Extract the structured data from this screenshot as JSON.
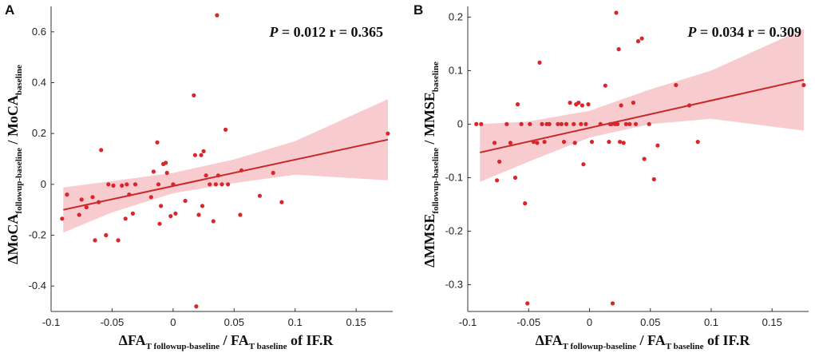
{
  "colors": {
    "points": "#d9262b",
    "fit_line": "#c62828",
    "ci_band": "#f4a9ad",
    "axis": "#333333"
  },
  "chart_data": [
    {
      "panel": "A",
      "type": "scatter",
      "stat_text": {
        "p_label": "P",
        "p_value": " = 0.012 r = 0.365"
      },
      "xlabel": {
        "main": "ΔFA",
        "sub1": "T followup-baseline",
        "mid": " / FA",
        "sub2": "T baseline",
        "tail": " of IF.R"
      },
      "ylabel": {
        "main": "ΔMoCA",
        "sub1": "followup-baseline",
        "mid": " / MoCA",
        "sub2": "baseline"
      },
      "xlim": [
        -0.1,
        0.18
      ],
      "ylim": [
        -0.5,
        0.7
      ],
      "xticks": [
        -0.1,
        -0.05,
        0,
        0.05,
        0.1,
        0.15
      ],
      "xtick_labels": [
        "-0.1",
        "-0.05",
        "0",
        "0.05",
        "0.1",
        "0.15"
      ],
      "yticks": [
        -0.4,
        -0.2,
        0,
        0.2,
        0.4,
        0.6
      ],
      "ytick_labels": [
        "-0.4",
        "-0.2",
        "0",
        "0.2",
        "0.4",
        "0.6"
      ],
      "fit": {
        "x": [
          -0.09,
          0.176
        ],
        "y": [
          -0.1,
          0.176
        ]
      },
      "ci_band": {
        "x": [
          -0.09,
          -0.05,
          0,
          0.05,
          0.1,
          0.176
        ],
        "upper": [
          -0.012,
          0.013,
          0.045,
          0.098,
          0.17,
          0.335
        ],
        "lower": [
          -0.19,
          -0.11,
          -0.035,
          0.005,
          0.038,
          0.016
        ]
      },
      "points": {
        "x": [
          -0.091,
          -0.087,
          -0.077,
          -0.075,
          -0.071,
          -0.066,
          -0.064,
          -0.061,
          -0.059,
          -0.055,
          -0.053,
          -0.049,
          -0.045,
          -0.042,
          -0.039,
          -0.038,
          -0.036,
          -0.033,
          -0.031,
          -0.018,
          -0.016,
          -0.013,
          -0.012,
          -0.011,
          -0.01,
          -0.008,
          -0.006,
          -0.005,
          -0.002,
          0.0,
          0.002,
          0.01,
          0.017,
          0.018,
          0.019,
          0.021,
          0.023,
          0.024,
          0.025,
          0.027,
          0.03,
          0.033,
          0.035,
          0.036,
          0.037,
          0.04,
          0.043,
          0.045,
          0.055,
          0.056,
          0.071,
          0.082,
          0.089,
          0.176
        ],
        "y": [
          -0.135,
          -0.04,
          -0.12,
          -0.06,
          -0.09,
          -0.05,
          -0.22,
          -0.07,
          0.135,
          -0.2,
          0.0,
          -0.005,
          -0.22,
          -0.005,
          -0.135,
          0.0,
          -0.04,
          -0.115,
          0.0,
          -0.05,
          0.05,
          0.165,
          0.0,
          -0.155,
          -0.085,
          0.08,
          0.085,
          0.045,
          -0.125,
          0.0,
          -0.115,
          -0.065,
          0.35,
          0.115,
          -0.48,
          -0.12,
          0.115,
          -0.085,
          0.13,
          0.035,
          0.0,
          -0.145,
          0.0,
          0.665,
          0.035,
          0.0,
          0.215,
          0.0,
          -0.12,
          0.055,
          -0.045,
          0.045,
          -0.07,
          0.2
        ]
      }
    },
    {
      "panel": "B",
      "type": "scatter",
      "stat_text": {
        "p_label": "P",
        "p_value": " = 0.034 r = 0.309"
      },
      "xlabel": {
        "main": "ΔFA",
        "sub1": "T followup-baseline",
        "mid": " / FA",
        "sub2": "T baseline",
        "tail": " of IF.R"
      },
      "ylabel": {
        "main": "ΔMMSE",
        "sub1": "followup-baseline",
        "mid": " / MMSE",
        "sub2": "baseline"
      },
      "xlim": [
        -0.1,
        0.18
      ],
      "ylim": [
        -0.35,
        0.22
      ],
      "xticks": [
        -0.1,
        -0.05,
        0,
        0.05,
        0.1,
        0.15
      ],
      "xtick_labels": [
        "-0.1",
        "-0.05",
        "0",
        "0.05",
        "0.1",
        "0.15"
      ],
      "yticks": [
        -0.3,
        -0.2,
        -0.1,
        0,
        0.1,
        0.2
      ],
      "ytick_labels": [
        "-0.3",
        "-0.2",
        "-0.1",
        "0",
        "0.1",
        "0.2"
      ],
      "fit": {
        "x": [
          -0.09,
          0.176
        ],
        "y": [
          -0.053,
          0.083
        ]
      },
      "ci_band": {
        "x": [
          -0.09,
          -0.05,
          0,
          0.05,
          0.1,
          0.176
        ],
        "upper": [
          0.0,
          0.005,
          0.025,
          0.065,
          0.1,
          0.178
        ],
        "lower": [
          -0.108,
          -0.07,
          -0.025,
          0.0,
          0.01,
          -0.012
        ]
      },
      "points": {
        "x": [
          -0.093,
          -0.089,
          -0.078,
          -0.076,
          -0.074,
          -0.068,
          -0.065,
          -0.061,
          -0.059,
          -0.056,
          -0.053,
          -0.051,
          -0.049,
          -0.046,
          -0.043,
          -0.041,
          -0.039,
          -0.037,
          -0.035,
          -0.033,
          -0.026,
          -0.023,
          -0.021,
          -0.019,
          -0.016,
          -0.013,
          -0.012,
          -0.011,
          -0.009,
          -0.007,
          -0.006,
          -0.005,
          -0.003,
          -0.001,
          0.002,
          0.009,
          0.013,
          0.016,
          0.017,
          0.018,
          0.019,
          0.021,
          0.022,
          0.023,
          0.024,
          0.025,
          0.026,
          0.028,
          0.03,
          0.033,
          0.036,
          0.038,
          0.04,
          0.043,
          0.045,
          0.049,
          0.053,
          0.056,
          0.071,
          0.082,
          0.089,
          0.176
        ],
        "y": [
          0.0,
          0.0,
          -0.035,
          -0.105,
          -0.07,
          0.0,
          -0.035,
          -0.1,
          0.037,
          0.0,
          -0.148,
          -0.335,
          0.0,
          -0.033,
          -0.035,
          0.115,
          0.0,
          -0.033,
          0.0,
          0.0,
          0.0,
          0.0,
          -0.033,
          0.0,
          0.04,
          0.0,
          -0.035,
          0.037,
          0.04,
          0.0,
          0.035,
          -0.075,
          0.0,
          0.037,
          -0.033,
          0.0,
          0.072,
          -0.033,
          0.0,
          0.0,
          -0.335,
          0.0,
          0.208,
          0.0,
          0.14,
          -0.033,
          0.035,
          -0.035,
          0.0,
          0.0,
          0.04,
          0.0,
          0.155,
          0.16,
          -0.065,
          0.0,
          -0.103,
          -0.04,
          0.073,
          0.035,
          -0.033,
          0.073
        ]
      }
    }
  ]
}
